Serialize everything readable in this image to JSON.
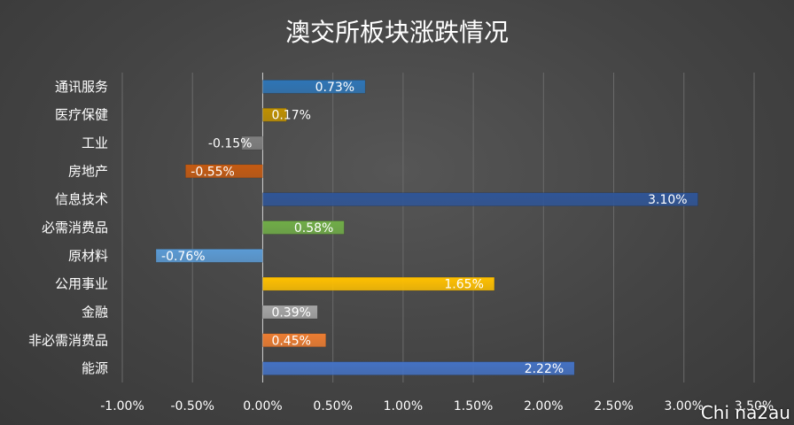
{
  "chart_data": {
    "type": "bar",
    "orientation": "horizontal",
    "title": "澳交所板块涨跌情况",
    "categories": [
      "通讯服务",
      "医疗保健",
      "工业",
      "房地产",
      "信息技术",
      "必需消费品",
      "原材料",
      "公用事业",
      "金融",
      "非必需消费品",
      "能源"
    ],
    "values": [
      0.73,
      0.17,
      -0.15,
      -0.55,
      3.1,
      0.58,
      -0.76,
      1.65,
      0.39,
      0.45,
      2.22
    ],
    "value_labels": [
      "0.73%",
      "0.17%",
      "-0.15%",
      "-0.55%",
      "3.10%",
      "0.58%",
      "-0.76%",
      "1.65%",
      "0.39%",
      "0.45%",
      "2.22%"
    ],
    "colors": [
      "#2E75B6",
      "#BF9000",
      "#7F7F7F",
      "#C55A11",
      "#2F5597",
      "#70AD47",
      "#5B9BD5",
      "#FFC000",
      "#A5A5A5",
      "#ED7D31",
      "#4472C4"
    ],
    "xlim": [
      -1.0,
      3.5
    ],
    "xticks": [
      -1.0,
      -0.5,
      0.0,
      0.5,
      1.0,
      1.5,
      2.0,
      2.5,
      3.0,
      3.5
    ],
    "xtick_labels": [
      "-1.00%",
      "-0.50%",
      "0.00%",
      "0.50%",
      "1.00%",
      "1.50%",
      "2.00%",
      "2.50%",
      "3.00%",
      "3.50%"
    ],
    "grid": true,
    "xlabel": "",
    "ylabel": ""
  },
  "watermark": "Chi na2au"
}
